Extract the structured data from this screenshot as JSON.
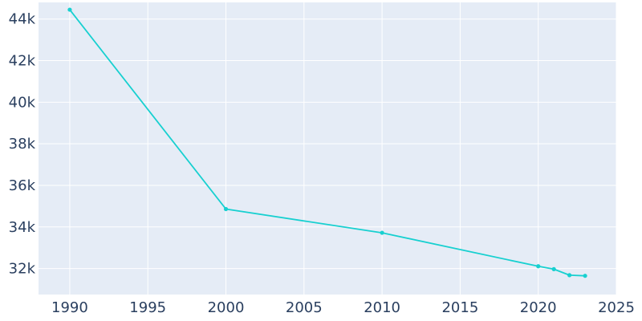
{
  "chart_data": {
    "type": "line",
    "title": "",
    "xlabel": "",
    "ylabel": "",
    "xlim": [
      1988,
      2025
    ],
    "ylim": [
      30750,
      44800
    ],
    "grid": true,
    "legend": "none",
    "x_ticks": [
      1990,
      1995,
      2000,
      2005,
      2010,
      2015,
      2020,
      2025
    ],
    "x_tick_labels": [
      "1990",
      "1995",
      "2000",
      "2005",
      "2010",
      "2015",
      "2020",
      "2025"
    ],
    "y_ticks": [
      32000,
      34000,
      36000,
      38000,
      40000,
      42000,
      44000
    ],
    "y_tick_labels": [
      "32k",
      "34k",
      "36k",
      "38k",
      "40k",
      "42k",
      "44k"
    ],
    "series": [
      {
        "x": [
          1990,
          2000,
          2010,
          2020,
          2021,
          2022,
          2023
        ],
        "y": [
          44450,
          34860,
          33720,
          32110,
          31970,
          31680,
          31650
        ]
      }
    ]
  },
  "colors": {
    "plot_background": "#e5ecf6",
    "grid": "#ffffff",
    "series": "#17d0d0",
    "text": "#2a3f5f"
  }
}
